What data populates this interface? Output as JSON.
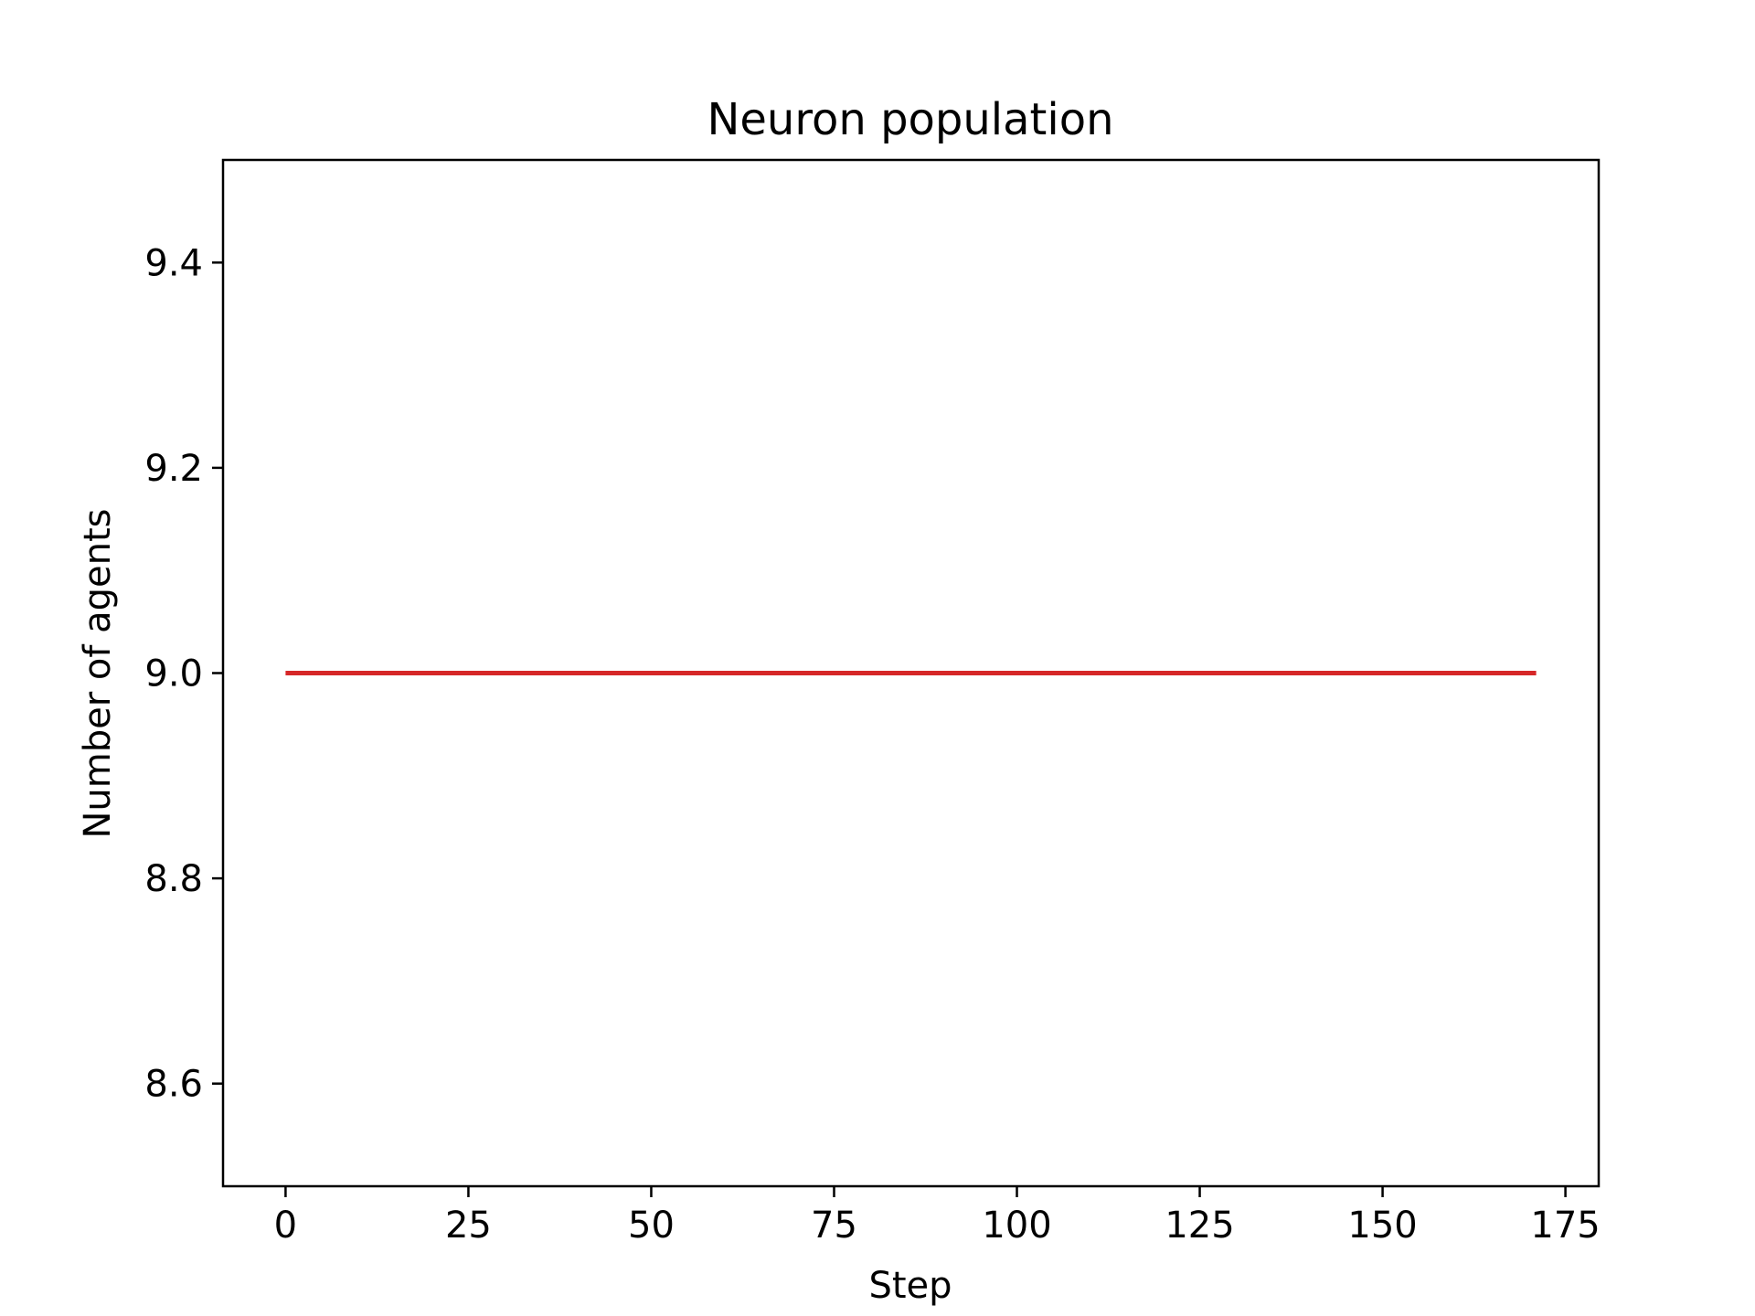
{
  "chart_data": {
    "type": "line",
    "title": "Neuron population",
    "xlabel": "Step",
    "ylabel": "Number of agents",
    "xlim": [
      -8.55,
      179.55
    ],
    "ylim": [
      8.5,
      9.5
    ],
    "x_ticks": [
      0,
      25,
      50,
      75,
      100,
      125,
      150,
      175
    ],
    "x_tick_labels": [
      "0",
      "25",
      "50",
      "75",
      "100",
      "125",
      "150",
      "175"
    ],
    "y_ticks": [
      8.6,
      8.8,
      9.0,
      9.2,
      9.4
    ],
    "y_tick_labels": [
      "8.6",
      "8.8",
      "9.0",
      "9.2",
      "9.4"
    ],
    "grid": false,
    "legend": "none",
    "series": [
      {
        "color": "#d62728",
        "x": [
          0,
          171
        ],
        "y": [
          9.0,
          9.0
        ]
      }
    ]
  }
}
